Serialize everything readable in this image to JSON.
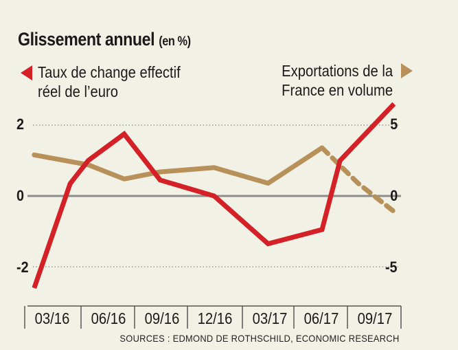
{
  "chart_data": {
    "type": "line",
    "title": "Glissement annuel",
    "title_unit": "(en %)",
    "categories": [
      "03/16",
      "06/16",
      "09/16",
      "12/16",
      "03/17",
      "06/17",
      "09/17"
    ],
    "y_left": {
      "ticks": [
        "2",
        "0",
        "-2"
      ],
      "ylim": [
        -2.6,
        2.6
      ]
    },
    "y_right": {
      "ticks": [
        "5",
        "0",
        "-5"
      ],
      "ylim": [
        -6.5,
        6.5
      ]
    },
    "grid": "dotted at 2, 0, -2",
    "series": [
      {
        "name_lines": [
          "Taux de change effectif",
          "réel de l’euro"
        ],
        "axis": "left",
        "color": "#d42027",
        "points": [
          {
            "x": "02/16",
            "y": -2.6
          },
          {
            "x": "04/16",
            "y": 0.35
          },
          {
            "x": "05/16",
            "y": 1.0
          },
          {
            "x": "07/16",
            "y": 1.75
          },
          {
            "x": "09/16",
            "y": 0.45
          },
          {
            "x": "12/16",
            "y": 0.0
          },
          {
            "x": "03/17",
            "y": -1.35
          },
          {
            "x": "06/17",
            "y": -0.95
          },
          {
            "x": "07/17",
            "y": 1.0
          },
          {
            "x": "10/17",
            "y": 2.6
          }
        ]
      },
      {
        "name_lines": [
          "Exportations de la",
          "France en volume"
        ],
        "axis": "right",
        "color": "#b8915a",
        "points": [
          {
            "x": "02/16",
            "y": 2.9
          },
          {
            "x": "05/16",
            "y": 2.2
          },
          {
            "x": "07/16",
            "y": 1.2
          },
          {
            "x": "09/16",
            "y": 1.7
          },
          {
            "x": "12/16",
            "y": 2.0
          },
          {
            "x": "03/17",
            "y": 0.9
          },
          {
            "x": "06/17",
            "y": 3.4
          }
        ],
        "projection": [
          {
            "x": "06/17",
            "y": 3.4
          },
          {
            "x": "08/17",
            "y": 0.9
          },
          {
            "x": "10/17",
            "y": -1.1
          }
        ]
      }
    ],
    "source": "SOURCES : EDMOND DE ROTHSCHILD, ECONOMIC RESEARCH"
  }
}
